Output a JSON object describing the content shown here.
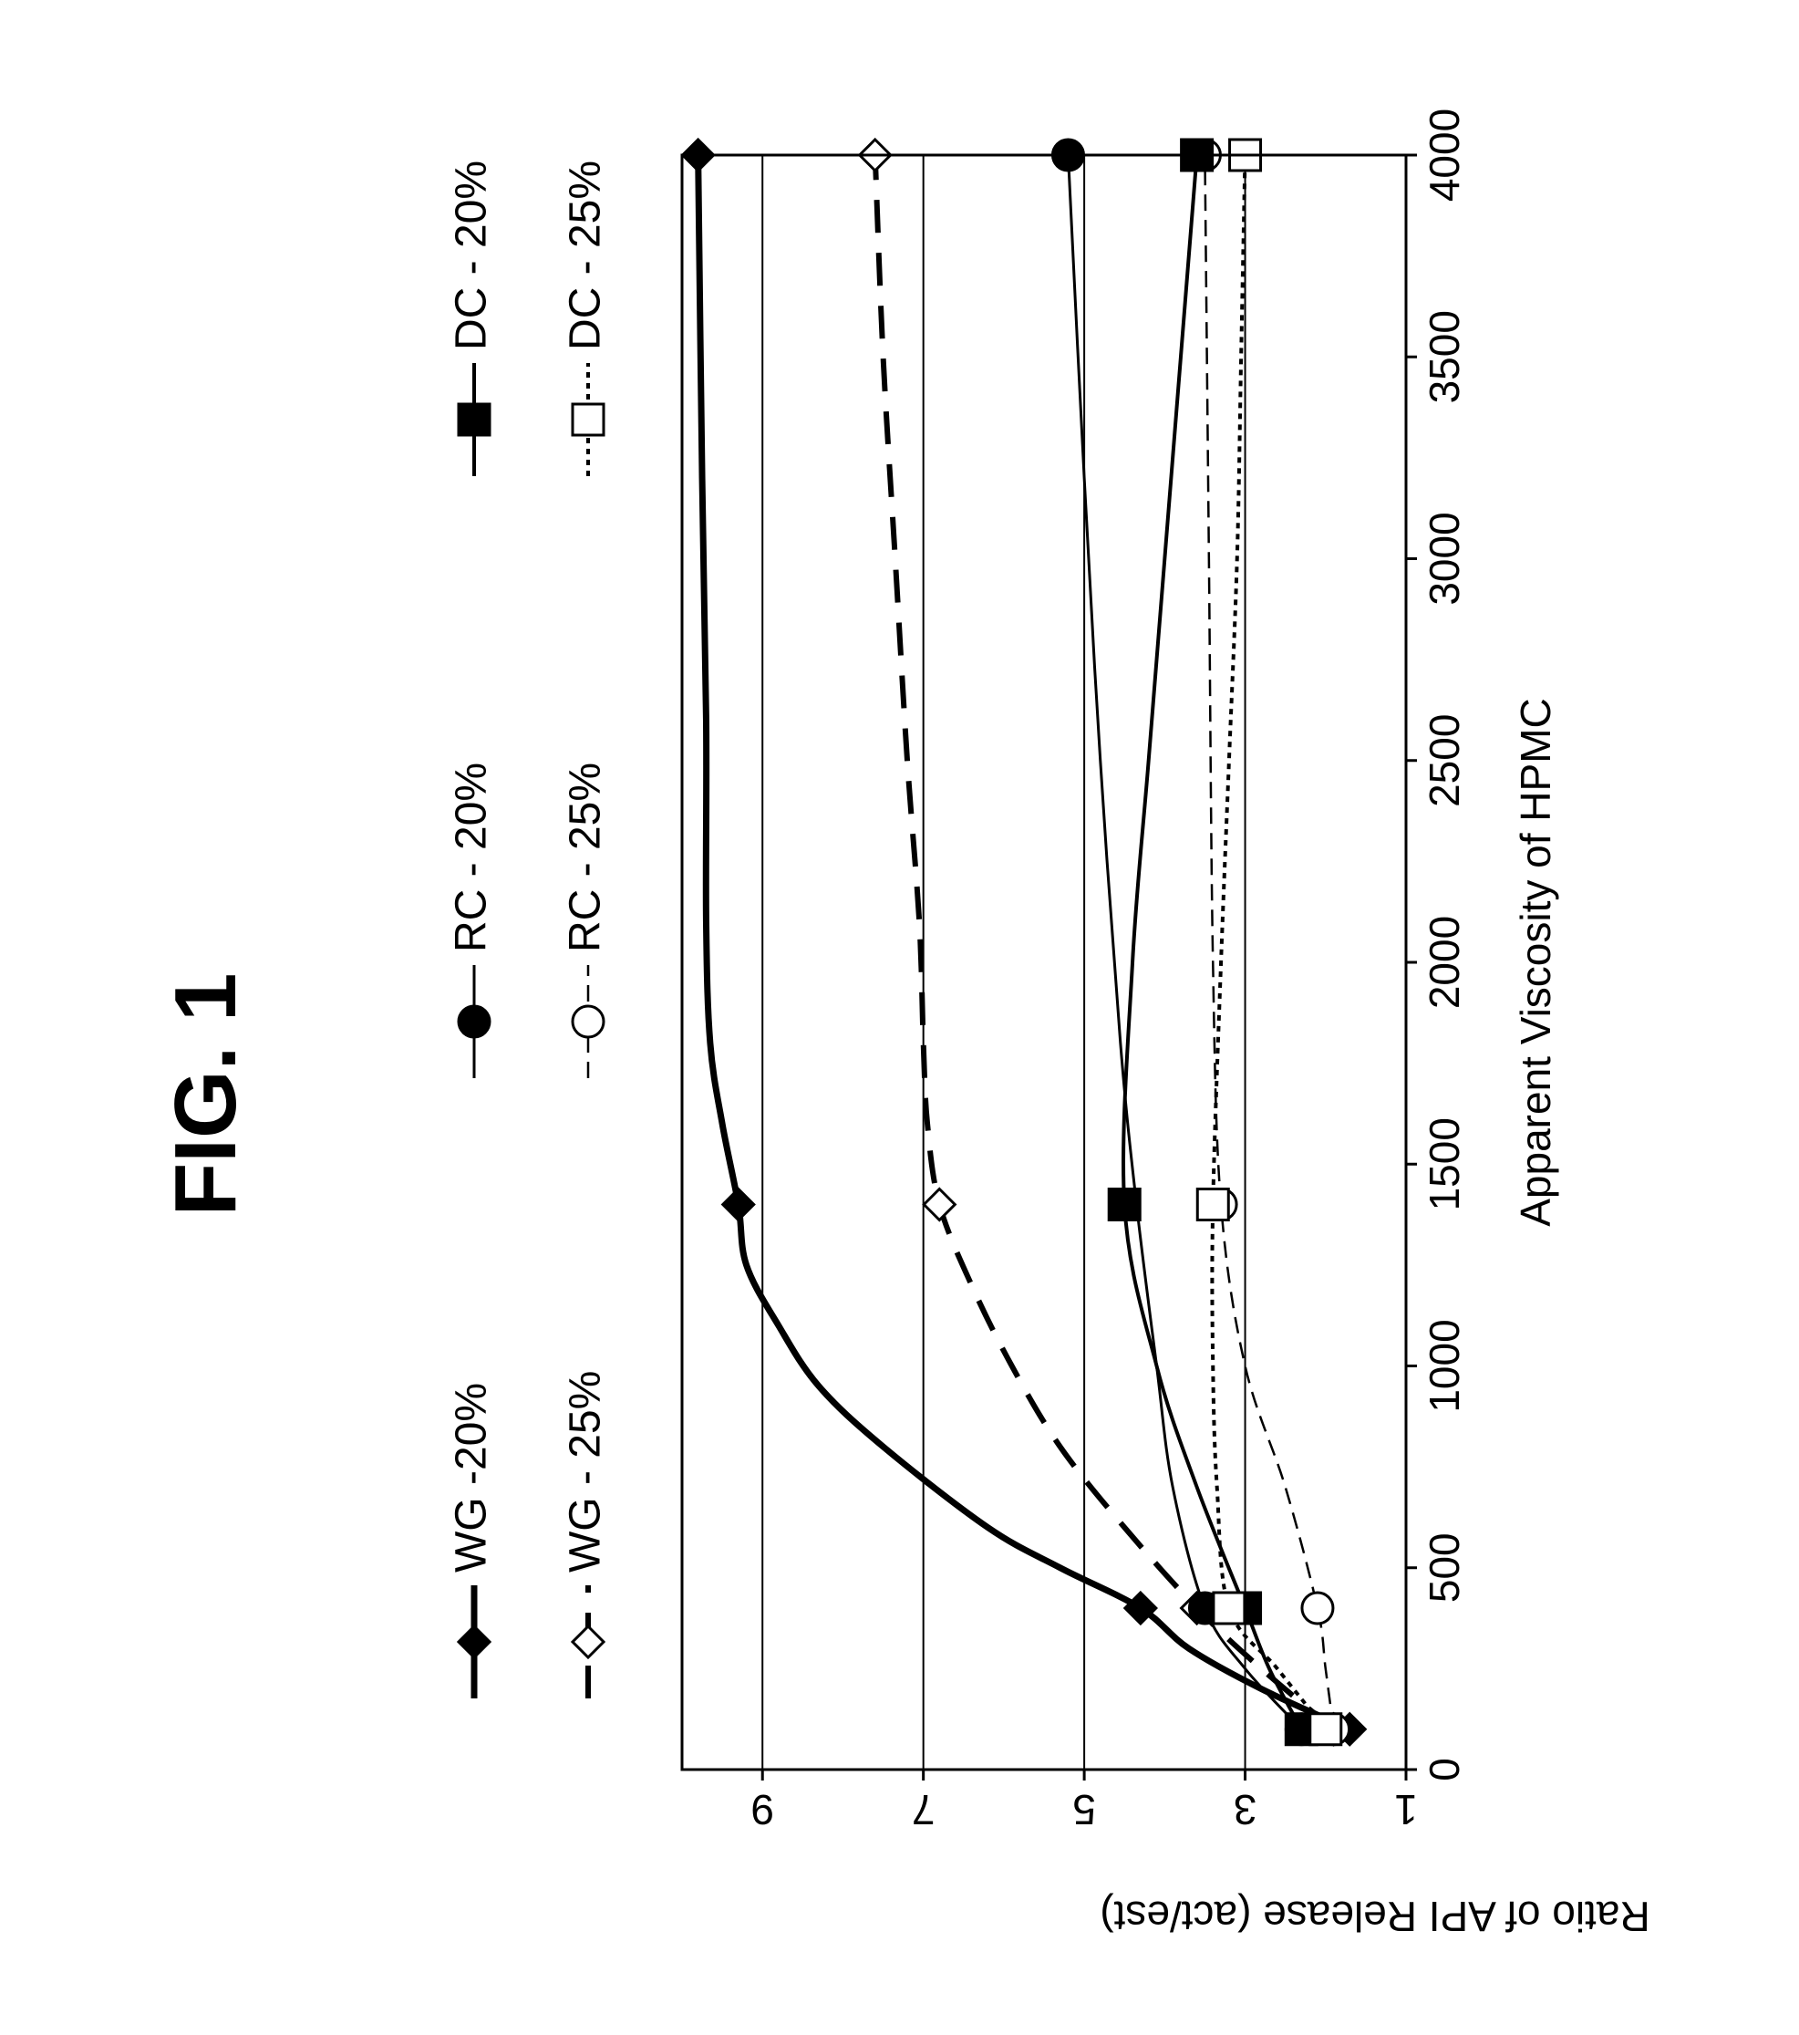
{
  "figure_label": "FIG. 1",
  "chart_data": {
    "type": "line",
    "orientation": "rotated 90 degrees counter-clockwise",
    "xlabel": "Apparent Viscosity of HPMC",
    "ylabel": "Ratio of API Release (act/est)",
    "xlim": [
      0,
      4000
    ],
    "ylim": [
      1,
      10
    ],
    "x_ticks": [
      "0",
      "500",
      "1000",
      "1500",
      "2000",
      "2500",
      "3000",
      "3500",
      "4000"
    ],
    "y_ticks": [
      "1",
      "3",
      "5",
      "7",
      "9"
    ],
    "grid": "horizontal lines at y = 3, 5, 7, 9",
    "legend_position": "top, two rows",
    "series": [
      {
        "name": "WG -20%",
        "marker": "filled-diamond",
        "line": "thick-solid",
        "x": [
          100,
          400,
          1400,
          4000
        ],
        "y": [
          1.7,
          4.3,
          9.3,
          9.8
        ],
        "curve": [
          [
            100,
            1.7
          ],
          [
            200,
            2.8
          ],
          [
            300,
            3.7
          ],
          [
            400,
            4.3
          ],
          [
            500,
            5.3
          ],
          [
            600,
            6.2
          ],
          [
            800,
            7.5
          ],
          [
            950,
            8.3
          ],
          [
            1100,
            8.8
          ],
          [
            1250,
            9.2
          ],
          [
            1400,
            9.3
          ],
          [
            1600,
            9.5
          ],
          [
            1800,
            9.65
          ],
          [
            2100,
            9.7
          ],
          [
            2600,
            9.7
          ],
          [
            3200,
            9.75
          ],
          [
            4000,
            9.8
          ]
        ]
      },
      {
        "name": "WG - 25%",
        "marker": "open-diamond",
        "line": "thick-dashed",
        "x": [
          100,
          400,
          1400,
          4000
        ],
        "y": [
          1.9,
          3.6,
          6.8,
          7.6
        ],
        "curve": [
          [
            100,
            1.9
          ],
          [
            250,
            2.8
          ],
          [
            400,
            3.6
          ],
          [
            600,
            4.5
          ],
          [
            800,
            5.3
          ],
          [
            1000,
            5.9
          ],
          [
            1200,
            6.4
          ],
          [
            1400,
            6.8
          ],
          [
            1600,
            6.95
          ],
          [
            1800,
            7.0
          ],
          [
            2100,
            7.05
          ],
          [
            2500,
            7.2
          ],
          [
            3000,
            7.35
          ],
          [
            3500,
            7.5
          ],
          [
            4000,
            7.6
          ]
        ]
      },
      {
        "name": "RC - 20%",
        "marker": "filled-circle",
        "line": "thin-solid",
        "x": [
          100,
          400,
          4000
        ],
        "y": [
          2.3,
          3.5,
          5.2
        ],
        "curve": [
          [
            100,
            2.3
          ],
          [
            250,
            3.0
          ],
          [
            400,
            3.5
          ],
          [
            700,
            3.9
          ],
          [
            1000,
            4.1
          ],
          [
            1400,
            4.35
          ],
          [
            1800,
            4.55
          ],
          [
            2500,
            4.8
          ],
          [
            3200,
            5.0
          ],
          [
            4000,
            5.2
          ]
        ]
      },
      {
        "name": "RC - 25%",
        "marker": "open-circle",
        "line": "thin-dashed",
        "x": [
          100,
          400,
          1400,
          4000
        ],
        "y": [
          1.9,
          2.1,
          3.3,
          3.5
        ],
        "curve": [
          [
            100,
            1.9
          ],
          [
            250,
            2.0
          ],
          [
            400,
            2.1
          ],
          [
            700,
            2.5
          ],
          [
            1000,
            3.0
          ],
          [
            1400,
            3.3
          ],
          [
            2000,
            3.4
          ],
          [
            3000,
            3.45
          ],
          [
            4000,
            3.5
          ]
        ]
      },
      {
        "name": "DC - 20%",
        "marker": "filled-square",
        "line": "medium-solid",
        "x": [
          100,
          400,
          1400,
          4000
        ],
        "y": [
          2.3,
          3.0,
          4.5,
          3.6
        ],
        "curve": [
          [
            100,
            2.3
          ],
          [
            250,
            2.7
          ],
          [
            400,
            3.0
          ],
          [
            700,
            3.6
          ],
          [
            1000,
            4.1
          ],
          [
            1400,
            4.5
          ],
          [
            2000,
            4.4
          ],
          [
            2500,
            4.2
          ],
          [
            3000,
            4.0
          ],
          [
            3500,
            3.8
          ],
          [
            4000,
            3.6
          ]
        ]
      },
      {
        "name": "DC - 25%",
        "marker": "open-square",
        "line": "dotted",
        "x": [
          100,
          400,
          1400,
          4000
        ],
        "y": [
          2.0,
          3.2,
          3.4,
          3.0
        ],
        "curve": [
          [
            100,
            2.0
          ],
          [
            250,
            2.6
          ],
          [
            400,
            3.2
          ],
          [
            700,
            3.35
          ],
          [
            1000,
            3.4
          ],
          [
            1400,
            3.4
          ],
          [
            2000,
            3.3
          ],
          [
            2500,
            3.2
          ],
          [
            3000,
            3.1
          ],
          [
            3500,
            3.05
          ],
          [
            4000,
            3.0
          ]
        ]
      }
    ]
  }
}
